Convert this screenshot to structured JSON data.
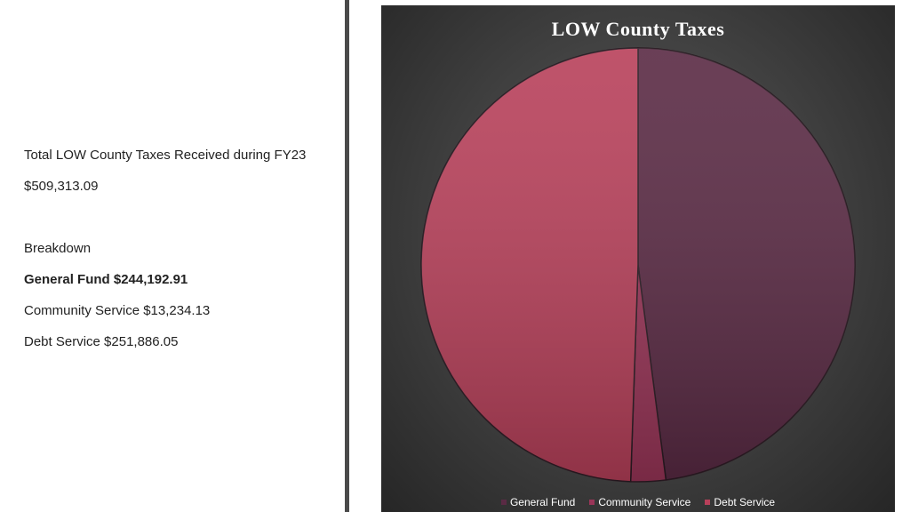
{
  "summary": {
    "total_label": "Total LOW County Taxes Received during FY23",
    "total_value": "$509,313.09",
    "breakdown_label": "Breakdown",
    "general_fund": "General Fund $244,192.91",
    "community_service": "Community Service $13,234.13",
    "debt_service": "Debt Service $251,886.05"
  },
  "chart_data": {
    "type": "pie",
    "title": "LOW County Taxes",
    "categories": [
      "General Fund",
      "Community Service",
      "Debt Service"
    ],
    "values": [
      244192.91,
      13234.13,
      251886.05
    ],
    "colors": [
      "#5a2a44",
      "#9a3558",
      "#b8405a"
    ],
    "legend_position": "bottom"
  }
}
